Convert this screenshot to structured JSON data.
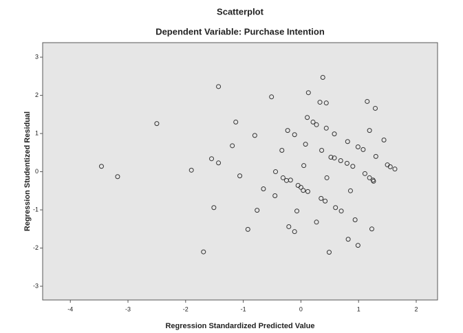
{
  "chart_data": {
    "type": "scatter",
    "title": "Scatterplot",
    "subtitle": "Dependent Variable: Purchase Intention",
    "x_label": "Regression Standardized Predicted Value",
    "y_label": "Regression Studentized Residual",
    "color": "#333333",
    "background": "#e6e6e6",
    "xlim": [
      -4.48,
      2.37
    ],
    "ylim": [
      -3.36,
      3.38
    ],
    "xticks": [
      -4,
      -3,
      -2,
      -1,
      0,
      1,
      2
    ],
    "yticks": [
      -3,
      -2,
      -1,
      0,
      1,
      2,
      3
    ],
    "grid": false,
    "x": [
      -3.46,
      -3.18,
      -2.5,
      -1.9,
      -1.69,
      -1.55,
      -1.51,
      -1.43,
      -1.43,
      -1.19,
      -1.13,
      -1.06,
      -0.92,
      -0.8,
      -0.76,
      -0.65,
      -0.51,
      -0.45,
      -0.44,
      -0.33,
      -0.31,
      -0.25,
      -0.23,
      -0.21,
      -0.18,
      -0.11,
      -0.11,
      -0.07,
      -0.05,
      0,
      0.04,
      0.05,
      0.08,
      0.11,
      0.12,
      0.13,
      0.21,
      0.27,
      0.27,
      0.33,
      0.35,
      0.36,
      0.38,
      0.42,
      0.44,
      0.44,
      0.45,
      0.49,
      0.52,
      0.58,
      0.6,
      0.58,
      0.69,
      0.7,
      0.8,
      0.81,
      0.86,
      0.82,
      0.9,
      0.94,
      0.99,
      0.99,
      1.08,
      1.11,
      1.15,
      1.19,
      1.19,
      1.23,
      1.25,
      1.29,
      1.26,
      1.3,
      1.44,
      1.5,
      1.55,
      1.63
    ],
    "values": [
      0.14,
      -0.13,
      1.26,
      0.04,
      -2.1,
      0.34,
      -0.94,
      0.23,
      2.23,
      0.68,
      1.3,
      -0.11,
      -1.51,
      0.95,
      -1.01,
      -0.45,
      1.96,
      -0.63,
      0,
      0.56,
      -0.16,
      -0.23,
      1.08,
      -1.44,
      -0.22,
      0.97,
      -1.57,
      -1.03,
      -0.36,
      -0.41,
      -0.49,
      0.16,
      0.72,
      1.42,
      -0.52,
      2.07,
      1.3,
      -1.32,
      1.23,
      1.82,
      -0.7,
      0.56,
      2.47,
      -0.77,
      1.8,
      1.14,
      -0.16,
      -2.11,
      0.38,
      0.36,
      -0.94,
      0.99,
      0.29,
      -1.03,
      0.22,
      0.79,
      -0.5,
      -1.77,
      0.14,
      -1.26,
      0.65,
      -1.93,
      0.58,
      -0.05,
      1.84,
      1.08,
      -0.16,
      -1.5,
      -0.22,
      1.66,
      -0.25,
      0.4,
      0.83,
      0.18,
      0.13,
      0.07
    ]
  }
}
